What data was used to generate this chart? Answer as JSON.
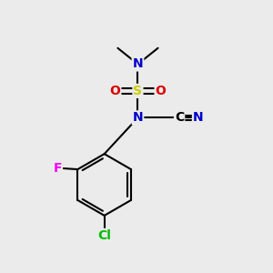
{
  "background_color": "#ebebeb",
  "atom_colors": {
    "C": "#000000",
    "N": "#0000cc",
    "S": "#cccc00",
    "O": "#dd0000",
    "F": "#ff00ff",
    "Cl": "#00bb00",
    "bond": "#000000"
  },
  "figsize": [
    3.0,
    3.0
  ],
  "dpi": 100
}
